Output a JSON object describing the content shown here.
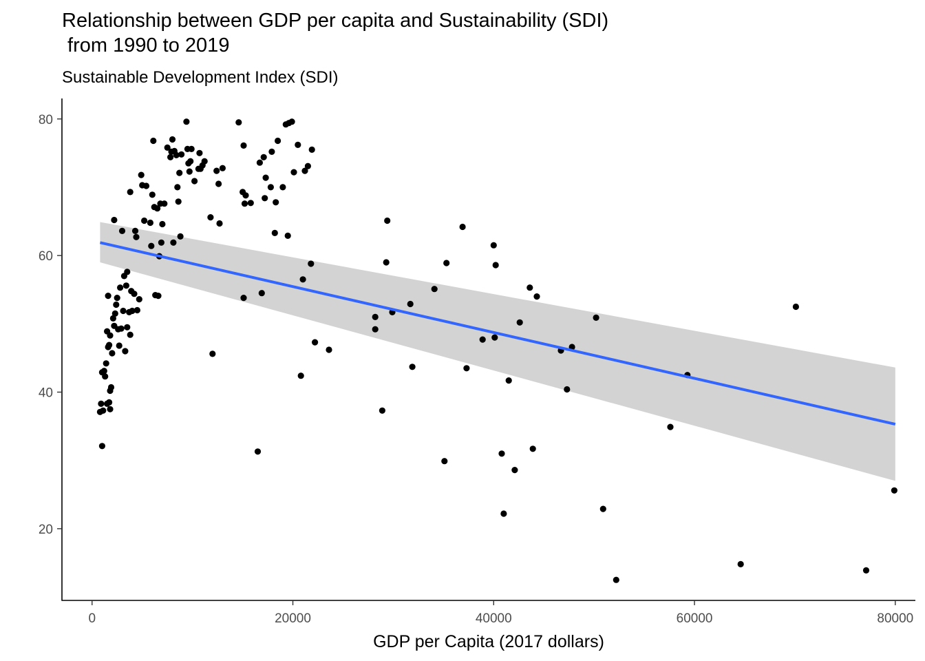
{
  "chart_data": {
    "type": "scatter",
    "title": "Relationship between GDP per capita and Sustainability (SDI)\n from 1990 to 2019",
    "subtitle": "Sustainable Development Index (SDI)",
    "xlabel": "GDP per Capita (2017 dollars)",
    "ylabel": "",
    "xlim": [
      -3000,
      82000
    ],
    "ylim": [
      9.5,
      83
    ],
    "x_ticks": [
      0,
      20000,
      40000,
      60000,
      80000
    ],
    "x_tick_labels": [
      "0",
      "20000",
      "40000",
      "60000",
      "80000"
    ],
    "y_ticks": [
      20,
      40,
      60,
      80
    ],
    "y_tick_labels": [
      "20",
      "40",
      "60",
      "80"
    ],
    "grid": false,
    "legend": "none",
    "colors": {
      "points": "#000000",
      "trend_line": "#3366ff",
      "confidence_band": "#d3d3d3"
    },
    "trend": {
      "method": "linear",
      "x": [
        800,
        80000
      ],
      "y": [
        61.9,
        35.3
      ],
      "ci_lower": [
        59.0,
        27.0
      ],
      "ci_upper": [
        64.9,
        43.6
      ]
    },
    "points": [
      [
        800,
        37.1
      ],
      [
        900,
        38.3
      ],
      [
        1000,
        32.1
      ],
      [
        1000,
        42.9
      ],
      [
        1100,
        37.3
      ],
      [
        1200,
        43.1
      ],
      [
        1300,
        42.3
      ],
      [
        1400,
        44.2
      ],
      [
        1500,
        38.3
      ],
      [
        1500,
        48.9
      ],
      [
        1600,
        46.6
      ],
      [
        1600,
        54.1
      ],
      [
        1700,
        38.5
      ],
      [
        1700,
        46.9
      ],
      [
        1800,
        40.2
      ],
      [
        1800,
        48.3
      ],
      [
        1800,
        37.5
      ],
      [
        1900,
        40.7
      ],
      [
        2000,
        45.7
      ],
      [
        2100,
        50.8
      ],
      [
        2200,
        49.7
      ],
      [
        2300,
        51.5
      ],
      [
        2200,
        65.2
      ],
      [
        2400,
        52.8
      ],
      [
        2500,
        53.8
      ],
      [
        2600,
        49.2
      ],
      [
        2700,
        46.8
      ],
      [
        2800,
        55.3
      ],
      [
        2900,
        49.3
      ],
      [
        3000,
        63.6
      ],
      [
        3100,
        51.9
      ],
      [
        3200,
        57.0
      ],
      [
        3300,
        46.0
      ],
      [
        3400,
        55.6
      ],
      [
        3500,
        49.5
      ],
      [
        3500,
        57.6
      ],
      [
        3700,
        51.7
      ],
      [
        3800,
        48.4
      ],
      [
        3800,
        69.3
      ],
      [
        3900,
        54.8
      ],
      [
        4000,
        51.9
      ],
      [
        4200,
        54.4
      ],
      [
        4300,
        63.6
      ],
      [
        4400,
        62.7
      ],
      [
        4500,
        52.0
      ],
      [
        4700,
        53.6
      ],
      [
        4900,
        71.8
      ],
      [
        5000,
        70.3
      ],
      [
        5200,
        65.1
      ],
      [
        5400,
        70.2
      ],
      [
        5800,
        64.8
      ],
      [
        5900,
        61.4
      ],
      [
        6000,
        68.9
      ],
      [
        6100,
        76.8
      ],
      [
        6200,
        67.1
      ],
      [
        6300,
        54.2
      ],
      [
        6500,
        66.9
      ],
      [
        6600,
        54.1
      ],
      [
        6700,
        59.9
      ],
      [
        6800,
        67.6
      ],
      [
        6900,
        61.9
      ],
      [
        7000,
        64.6
      ],
      [
        7200,
        67.6
      ],
      [
        7500,
        75.8
      ],
      [
        7800,
        74.4
      ],
      [
        7900,
        75.2
      ],
      [
        8000,
        77.0
      ],
      [
        8100,
        61.9
      ],
      [
        8200,
        75.3
      ],
      [
        8400,
        74.7
      ],
      [
        8500,
        70.0
      ],
      [
        8600,
        67.9
      ],
      [
        8700,
        72.1
      ],
      [
        8800,
        62.8
      ],
      [
        8900,
        74.8
      ],
      [
        9400,
        79.6
      ],
      [
        9500,
        75.6
      ],
      [
        9600,
        73.5
      ],
      [
        9700,
        72.3
      ],
      [
        9800,
        73.8
      ],
      [
        9900,
        75.6
      ],
      [
        10200,
        70.9
      ],
      [
        10600,
        72.7
      ],
      [
        10700,
        75.0
      ],
      [
        10800,
        72.7
      ],
      [
        11000,
        73.2
      ],
      [
        11200,
        73.8
      ],
      [
        11800,
        65.6
      ],
      [
        12000,
        45.6
      ],
      [
        12400,
        72.4
      ],
      [
        12600,
        70.5
      ],
      [
        12700,
        64.7
      ],
      [
        13000,
        72.8
      ],
      [
        14600,
        79.5
      ],
      [
        15000,
        69.3
      ],
      [
        15100,
        53.8
      ],
      [
        15100,
        76.1
      ],
      [
        15200,
        67.6
      ],
      [
        15300,
        68.8
      ],
      [
        15800,
        67.7
      ],
      [
        16500,
        31.3
      ],
      [
        16700,
        73.6
      ],
      [
        16900,
        54.5
      ],
      [
        17100,
        74.4
      ],
      [
        17200,
        68.4
      ],
      [
        17300,
        71.4
      ],
      [
        17800,
        70.0
      ],
      [
        17900,
        75.2
      ],
      [
        18200,
        63.3
      ],
      [
        18300,
        67.8
      ],
      [
        18500,
        76.8
      ],
      [
        19000,
        70.0
      ],
      [
        19300,
        79.2
      ],
      [
        19500,
        62.9
      ],
      [
        19600,
        79.4
      ],
      [
        19900,
        79.6
      ],
      [
        20100,
        72.2
      ],
      [
        20500,
        76.2
      ],
      [
        20800,
        42.4
      ],
      [
        21000,
        56.5
      ],
      [
        21200,
        72.4
      ],
      [
        21500,
        73.1
      ],
      [
        21800,
        58.8
      ],
      [
        21900,
        75.5
      ],
      [
        22200,
        47.3
      ],
      [
        23600,
        46.2
      ],
      [
        28200,
        51.0
      ],
      [
        28200,
        49.2
      ],
      [
        28900,
        37.3
      ],
      [
        29300,
        59.0
      ],
      [
        29400,
        65.1
      ],
      [
        29900,
        51.7
      ],
      [
        31700,
        52.9
      ],
      [
        31900,
        43.7
      ],
      [
        34100,
        55.1
      ],
      [
        35100,
        29.9
      ],
      [
        35300,
        58.9
      ],
      [
        36900,
        64.2
      ],
      [
        37300,
        43.5
      ],
      [
        38900,
        47.7
      ],
      [
        40000,
        61.5
      ],
      [
        40100,
        48.0
      ],
      [
        40200,
        58.6
      ],
      [
        40800,
        31.0
      ],
      [
        41000,
        22.2
      ],
      [
        41500,
        41.7
      ],
      [
        42100,
        28.6
      ],
      [
        42600,
        50.2
      ],
      [
        43600,
        55.3
      ],
      [
        43900,
        31.7
      ],
      [
        44300,
        54.0
      ],
      [
        46700,
        46.1
      ],
      [
        47300,
        40.4
      ],
      [
        47800,
        46.6
      ],
      [
        50200,
        50.9
      ],
      [
        50900,
        22.9
      ],
      [
        52200,
        12.5
      ],
      [
        57600,
        34.9
      ],
      [
        59300,
        42.5
      ],
      [
        64600,
        14.8
      ],
      [
        70100,
        52.5
      ],
      [
        77100,
        13.9
      ],
      [
        79900,
        25.6
      ]
    ]
  }
}
